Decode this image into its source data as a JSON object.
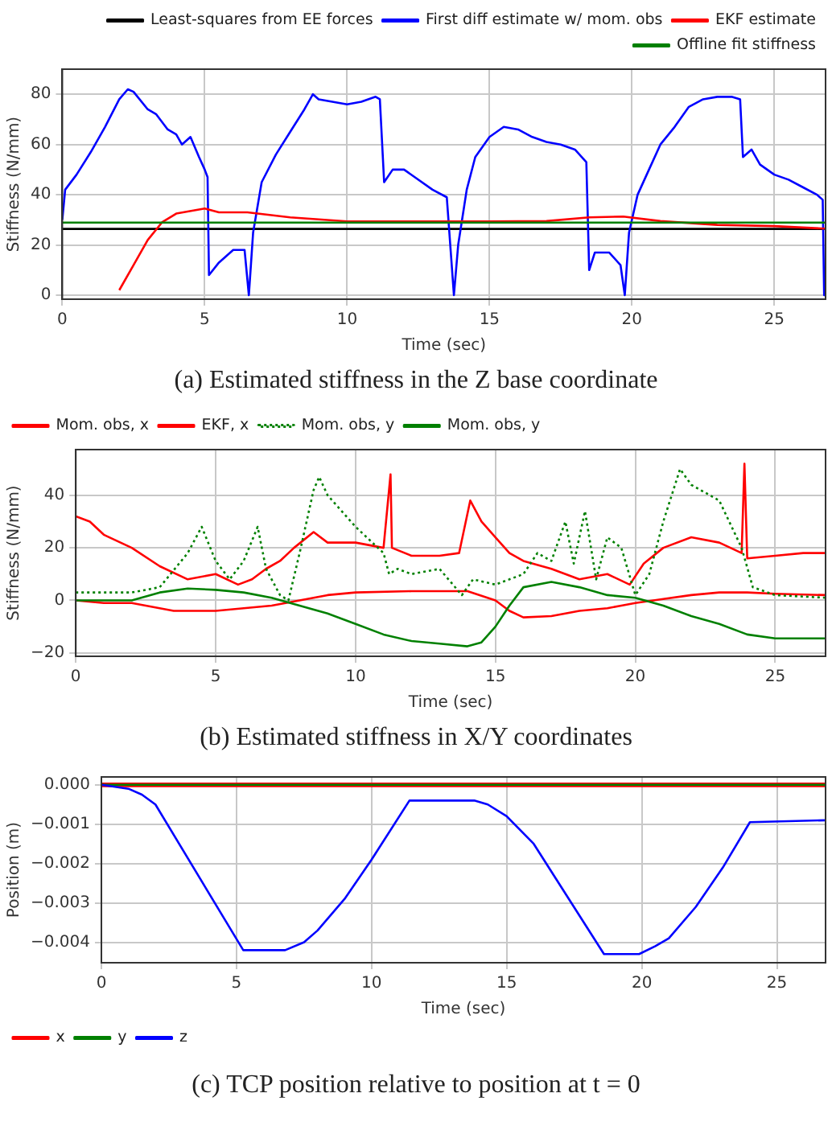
{
  "chart_data": [
    {
      "type": "line",
      "title": "(a) Estimated stiffness in the Z base coordinate",
      "xlabel": "Time (sec)",
      "ylabel": "Stiffness (N/mm)",
      "xlim": [
        0,
        26.8
      ],
      "xticks": [
        0,
        5,
        10,
        15,
        20,
        25
      ],
      "ylim": [
        -1.6,
        90
      ],
      "yticks": [
        0,
        20,
        40,
        60,
        80
      ],
      "grid": true,
      "legend": "top right",
      "series": [
        {
          "name": "Least-squares from EE forces",
          "color": "#000000",
          "x": [
            0,
            26.8
          ],
          "values": [
            26.4,
            26.4
          ]
        },
        {
          "name": "First diff estimate w/ mom. obs",
          "color": "#0000ff",
          "x": [
            0,
            0.1,
            0.5,
            1,
            1.5,
            2,
            2.3,
            2.5,
            3,
            3.3,
            3.7,
            4,
            4.2,
            4.5,
            4.8,
            5,
            5.1,
            5.15,
            5.5,
            6,
            6.4,
            6.55,
            6.7,
            7,
            7.5,
            8,
            8.5,
            8.8,
            9,
            10,
            10.5,
            11,
            11.15,
            11.3,
            11.6,
            12,
            13,
            13.5,
            13.75,
            13.9,
            14.2,
            14.5,
            15,
            15.5,
            16,
            16.5,
            17,
            17.5,
            18,
            18.4,
            18.5,
            18.7,
            19.2,
            19.6,
            19.75,
            19.9,
            20.2,
            20.6,
            21,
            21.5,
            22,
            22.5,
            23,
            23.5,
            23.8,
            23.9,
            24.2,
            24.5,
            25,
            25.5,
            26,
            26.5,
            26.7,
            26.75,
            26.8
          ],
          "values": [
            30,
            42,
            48,
            57,
            67,
            78,
            82,
            81,
            74,
            72,
            66,
            64,
            60,
            63,
            55,
            50,
            47,
            8,
            13,
            18,
            18,
            0,
            25,
            45,
            56,
            65,
            74,
            80,
            78,
            76,
            77,
            79,
            78,
            45,
            50,
            50,
            42,
            39,
            0,
            20,
            42,
            55,
            63,
            67,
            66,
            63,
            61,
            60,
            58,
            53,
            10,
            17,
            17,
            12,
            0,
            25,
            40,
            50,
            60,
            67,
            75,
            78,
            79,
            79,
            78,
            55,
            58,
            52,
            48,
            46,
            43,
            40,
            38,
            0,
            0
          ]
        },
        {
          "name": "EKF estimate",
          "color": "#ff0000",
          "x": [
            2,
            2.5,
            3,
            3.5,
            4,
            5,
            5.5,
            6.5,
            8,
            10,
            15,
            17,
            18.5,
            19.7,
            21,
            23,
            25,
            26.8
          ],
          "values": [
            2,
            12,
            22,
            29,
            32.5,
            34.5,
            33,
            33,
            31,
            29.4,
            29.4,
            29.5,
            31,
            31.3,
            29.5,
            28,
            27.5,
            26.5
          ]
        },
        {
          "name": "Offline fit stiffness",
          "color": "#008000",
          "x": [
            0,
            26.8
          ],
          "values": [
            28.9,
            28.9
          ]
        }
      ]
    },
    {
      "type": "line",
      "title": "(b) Estimated stiffness in X/Y coordinates",
      "xlabel": "Time (sec)",
      "ylabel": "Stiffness (N/mm)",
      "xlim": [
        0,
        26.8
      ],
      "xticks": [
        0,
        5,
        10,
        15,
        20,
        25
      ],
      "ylim": [
        -21.3,
        57.4
      ],
      "yticks": [
        {
          "value": -20,
          "label": "−20"
        },
        0,
        20,
        40
      ],
      "grid": true,
      "legend": "top left",
      "series": [
        {
          "name": "Mom. obs, x",
          "color": "#ff0000",
          "x": [
            0,
            0.5,
            1,
            2,
            3,
            4,
            5,
            5.8,
            6.3,
            6.8,
            7.3,
            7.8,
            8.5,
            9,
            10,
            11,
            11.25,
            11.3,
            12,
            13,
            13.7,
            14.1,
            14.5,
            15,
            15.5,
            16,
            17,
            18,
            19,
            19.8,
            20.3,
            21,
            22,
            23,
            23.8,
            23.9,
            24,
            25,
            26,
            26.8
          ],
          "values": [
            32,
            30,
            25,
            20,
            13,
            8,
            10,
            6,
            8,
            12,
            15,
            20,
            26,
            22,
            22,
            20,
            48,
            20,
            17,
            17,
            18,
            38,
            30,
            24,
            18,
            15,
            12,
            8,
            10,
            6,
            14,
            20,
            24,
            22,
            18,
            52,
            16,
            17,
            18,
            18
          ]
        },
        {
          "name": "EKF, x",
          "color": "#ff0000",
          "x": [
            0,
            1,
            2,
            3,
            3.5,
            5,
            6,
            7,
            8,
            9,
            10,
            12,
            14,
            15,
            15.5,
            16,
            17,
            18,
            19,
            19.5,
            20,
            21,
            22,
            23,
            24,
            25,
            26.8
          ],
          "values": [
            0,
            -1,
            -1,
            -3,
            -4,
            -4,
            -3,
            -2,
            0,
            2,
            3,
            3.5,
            3.5,
            0,
            -4,
            -6.5,
            -6,
            -4,
            -3,
            -2,
            -1,
            0.5,
            2,
            3,
            3,
            2.5,
            2
          ]
        },
        {
          "name": "Mom. obs, y",
          "color": "#008000",
          "line_style": "dotted",
          "x": [
            0,
            2,
            3,
            4,
            4.5,
            5,
            5.5,
            6,
            6.5,
            6.8,
            7.3,
            7.6,
            8,
            8.5,
            8.7,
            9,
            10,
            11,
            11.2,
            11.5,
            12,
            13,
            13.8,
            14.2,
            15,
            16,
            16.5,
            17,
            17.5,
            17.8,
            18.2,
            18.6,
            19,
            19.5,
            20,
            20.5,
            21,
            21.6,
            22,
            23,
            23.8,
            24.2,
            25,
            26.8
          ],
          "values": [
            3,
            3,
            5,
            18,
            28,
            15,
            8,
            15,
            28,
            12,
            2,
            0,
            18,
            42,
            47,
            40,
            28,
            18,
            10,
            12,
            10,
            12,
            2,
            8,
            6,
            10,
            18,
            15,
            30,
            14,
            34,
            8,
            24,
            20,
            2,
            10,
            30,
            50,
            44,
            38,
            20,
            5,
            2,
            1
          ]
        },
        {
          "name": "Mom. obs, y",
          "color": "#008000",
          "x": [
            0,
            2,
            3,
            4,
            5,
            6,
            7,
            8,
            9,
            10,
            11,
            12,
            13,
            14,
            14.5,
            15,
            15.5,
            16,
            17,
            18,
            19,
            20,
            21,
            22,
            23,
            24,
            25,
            26.8
          ],
          "values": [
            0,
            0,
            3,
            4.5,
            4,
            3,
            1,
            -2,
            -5,
            -9,
            -13,
            -15.5,
            -16.5,
            -17.5,
            -16,
            -10,
            -2,
            5,
            7,
            5,
            2,
            1,
            -2,
            -6,
            -9,
            -13,
            -14.5,
            -14.5
          ]
        }
      ]
    },
    {
      "type": "line",
      "title": "(c) TCP position relative to position at t = 0",
      "xlabel": "Time (sec)",
      "ylabel": "Position (m)",
      "xlim": [
        0,
        26.8
      ],
      "xticks": [
        0,
        5,
        10,
        15,
        20,
        25
      ],
      "ylim": [
        -0.00452,
        0.0002
      ],
      "yticks": [
        {
          "value": 0,
          "label": "0.000"
        },
        {
          "value": -0.001,
          "label": "−0.001"
        },
        {
          "value": -0.002,
          "label": "−0.002"
        },
        {
          "value": -0.003,
          "label": "−0.003"
        },
        {
          "value": -0.004,
          "label": "−0.004"
        }
      ],
      "grid": true,
      "legend": "bottom left",
      "series": [
        {
          "name": "x",
          "color": "#ff0000",
          "x": [
            0,
            26.8
          ],
          "values": [
            0,
            0
          ]
        },
        {
          "name": "y",
          "color": "#008000",
          "x": [
            0,
            26.8
          ],
          "values": [
            0,
            0
          ]
        },
        {
          "name": "z",
          "color": "#0000ff",
          "x": [
            0,
            1,
            1.5,
            2,
            5.25,
            6.8,
            7.5,
            8,
            9,
            10,
            11.4,
            13.8,
            14.3,
            15,
            16,
            18.6,
            19.9,
            20.5,
            21,
            22,
            23,
            24,
            26.8
          ],
          "values": [
            0,
            -0.0001,
            -0.00025,
            -0.0005,
            -0.0042,
            -0.0042,
            -0.004,
            -0.0037,
            -0.0029,
            -0.0019,
            -0.0004,
            -0.0004,
            -0.0005,
            -0.0008,
            -0.0015,
            -0.0043,
            -0.0043,
            -0.0041,
            -0.0039,
            -0.0031,
            -0.0021,
            -0.00095,
            -0.0009
          ]
        }
      ]
    }
  ]
}
